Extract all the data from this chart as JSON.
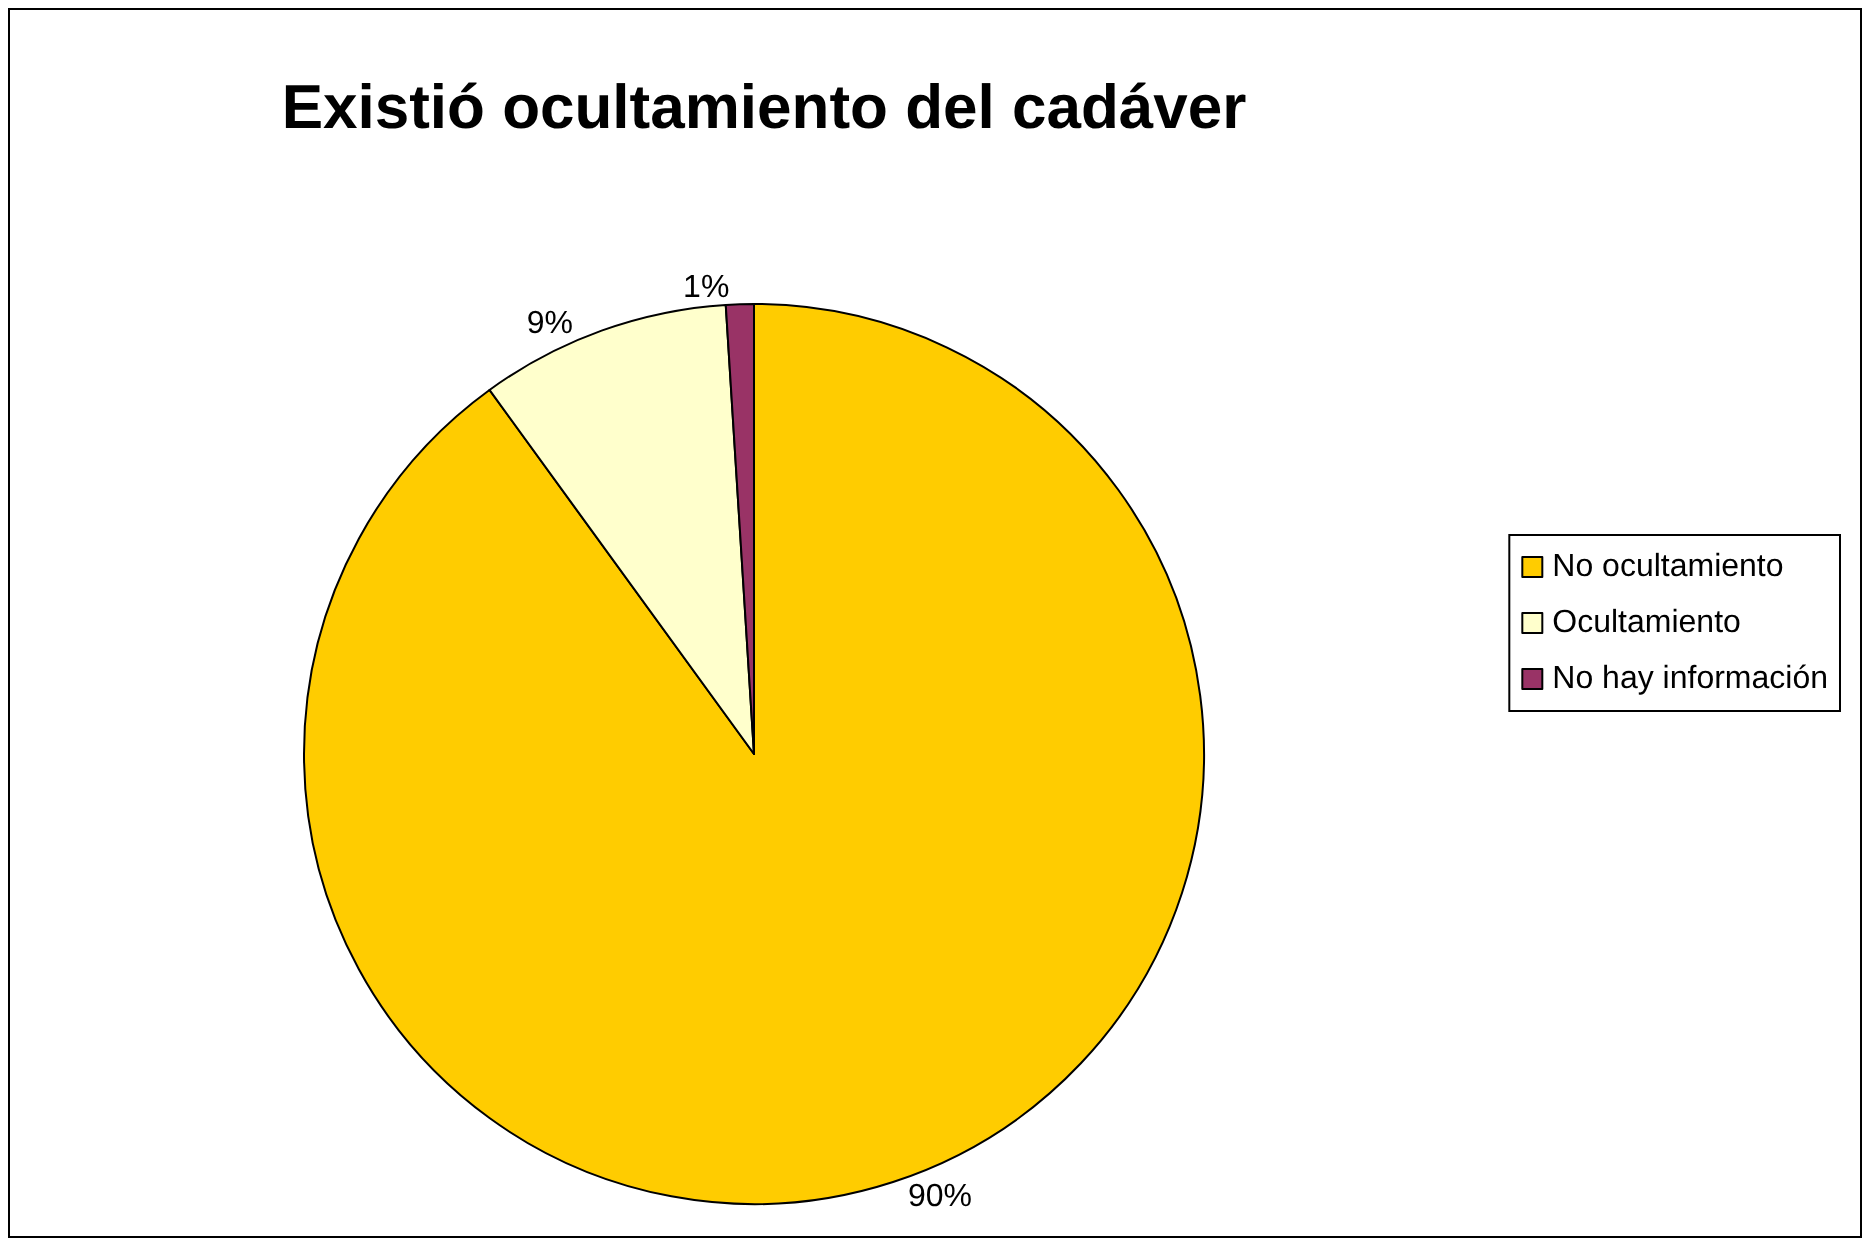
{
  "chart_data": {
    "type": "pie",
    "title": "Existió ocultamiento del cadáver",
    "categories": [
      "No ocultamiento",
      "Ocultamiento",
      "No hay información"
    ],
    "values": [
      90,
      9,
      1
    ],
    "colors": [
      "#ffcc00",
      "#ffffcc",
      "#993366"
    ],
    "value_labels": [
      "90%",
      "9%",
      "1%"
    ],
    "legend": "right"
  }
}
